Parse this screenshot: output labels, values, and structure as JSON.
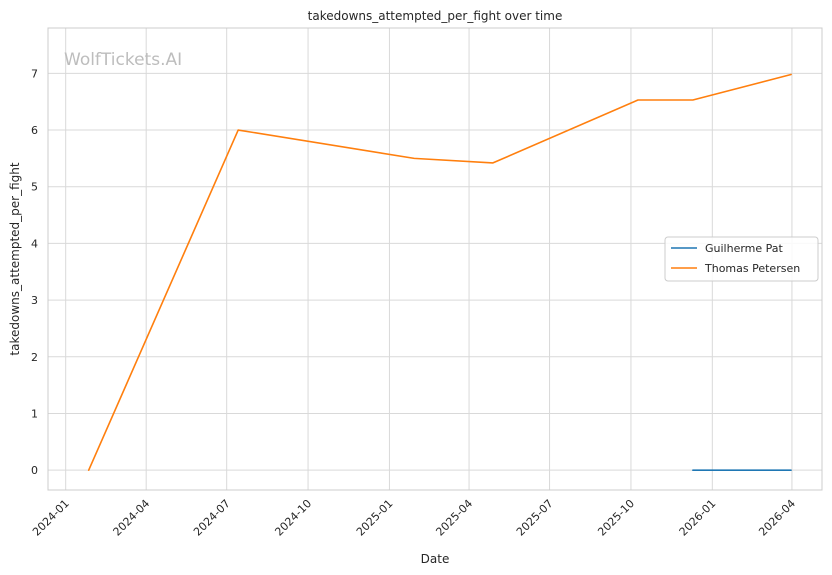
{
  "chart_data": {
    "type": "line",
    "title": "takedowns_attempted_per_fight over time",
    "xlabel": "Date",
    "ylabel": "takedowns_attempted_per_fight",
    "watermark": "WolfTickets.AI",
    "x_axis_kind": "date",
    "xlim": [
      "2023-12-12",
      "2026-05-05"
    ],
    "ylim": [
      -0.35,
      7.8
    ],
    "x_ticks": [
      "2024-01",
      "2024-04",
      "2024-07",
      "2024-10",
      "2025-01",
      "2025-04",
      "2025-07",
      "2025-10",
      "2026-01",
      "2026-04"
    ],
    "y_ticks": [
      0,
      1,
      2,
      3,
      4,
      5,
      6,
      7
    ],
    "grid": true,
    "legend_position": "center-right",
    "series": [
      {
        "name": "Guilherme Pat",
        "color": "#1f77b4",
        "points": [
          {
            "x": "2025-12-10",
            "y": 0
          },
          {
            "x": "2026-03-31",
            "y": 0
          }
        ]
      },
      {
        "name": "Thomas Petersen",
        "color": "#ff7f0e",
        "points": [
          {
            "x": "2024-01-27",
            "y": 0
          },
          {
            "x": "2024-07-14",
            "y": 6.0
          },
          {
            "x": "2025-01-29",
            "y": 5.5
          },
          {
            "x": "2025-04-28",
            "y": 5.42
          },
          {
            "x": "2025-10-09",
            "y": 6.53
          },
          {
            "x": "2025-12-10",
            "y": 6.53
          },
          {
            "x": "2026-03-31",
            "y": 6.98
          }
        ]
      }
    ]
  }
}
